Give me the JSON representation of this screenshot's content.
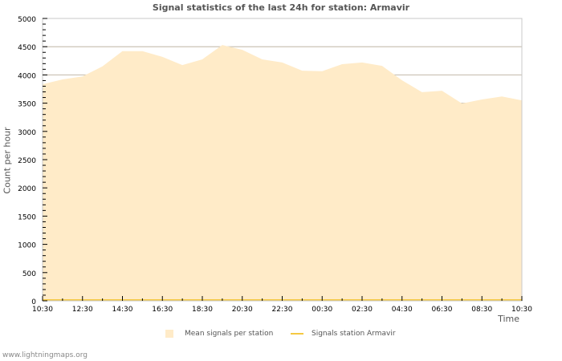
{
  "title": "Signal statistics of the last 24h for station: Armavir",
  "footer": "www.lightningmaps.org",
  "colors": {
    "area_fill": "#ffebc8",
    "station_line": "#f5c842",
    "grid": "#c8c8c8",
    "text": "#555555"
  },
  "legend": {
    "mean": "Mean signals per station",
    "station": "Signals station Armavir"
  },
  "axes": {
    "xlabel": "Time",
    "ylabel": "Count per hour"
  },
  "chart_data": {
    "type": "area",
    "title": "Signal statistics of the last 24h for station: Armavir",
    "xlabel": "Time",
    "ylabel": "Count per hour",
    "ylim": [
      0,
      5000
    ],
    "yticks": [
      0,
      500,
      1000,
      1500,
      2000,
      2500,
      3000,
      3500,
      4000,
      4500,
      5000
    ],
    "xticks": [
      "10:30",
      "12:30",
      "14:30",
      "16:30",
      "18:30",
      "20:30",
      "22:30",
      "00:30",
      "02:30",
      "04:30",
      "06:30",
      "08:30",
      "10:30"
    ],
    "grid": true,
    "legend_position": "bottom",
    "x": [
      "10:30",
      "11:30",
      "12:30",
      "13:30",
      "14:30",
      "15:30",
      "16:30",
      "17:30",
      "18:30",
      "19:30",
      "20:30",
      "21:30",
      "22:30",
      "23:30",
      "00:30",
      "01:30",
      "02:30",
      "03:30",
      "04:30",
      "05:30",
      "06:30",
      "07:30",
      "08:30",
      "09:30",
      "10:30"
    ],
    "series": [
      {
        "name": "Mean signals per station",
        "style": "area",
        "values": [
          3835,
          3920,
          3975,
          4150,
          4420,
          4420,
          4320,
          4175,
          4275,
          4530,
          4445,
          4275,
          4220,
          4075,
          4065,
          4190,
          4220,
          4160,
          3905,
          3695,
          3720,
          3495,
          3565,
          3620,
          3550
        ]
      },
      {
        "name": "Signals station Armavir",
        "style": "line",
        "values": [
          0,
          0,
          0,
          0,
          0,
          0,
          0,
          0,
          0,
          0,
          0,
          0,
          0,
          0,
          0,
          0,
          0,
          0,
          0,
          0,
          0,
          0,
          0,
          0,
          0
        ]
      }
    ]
  }
}
